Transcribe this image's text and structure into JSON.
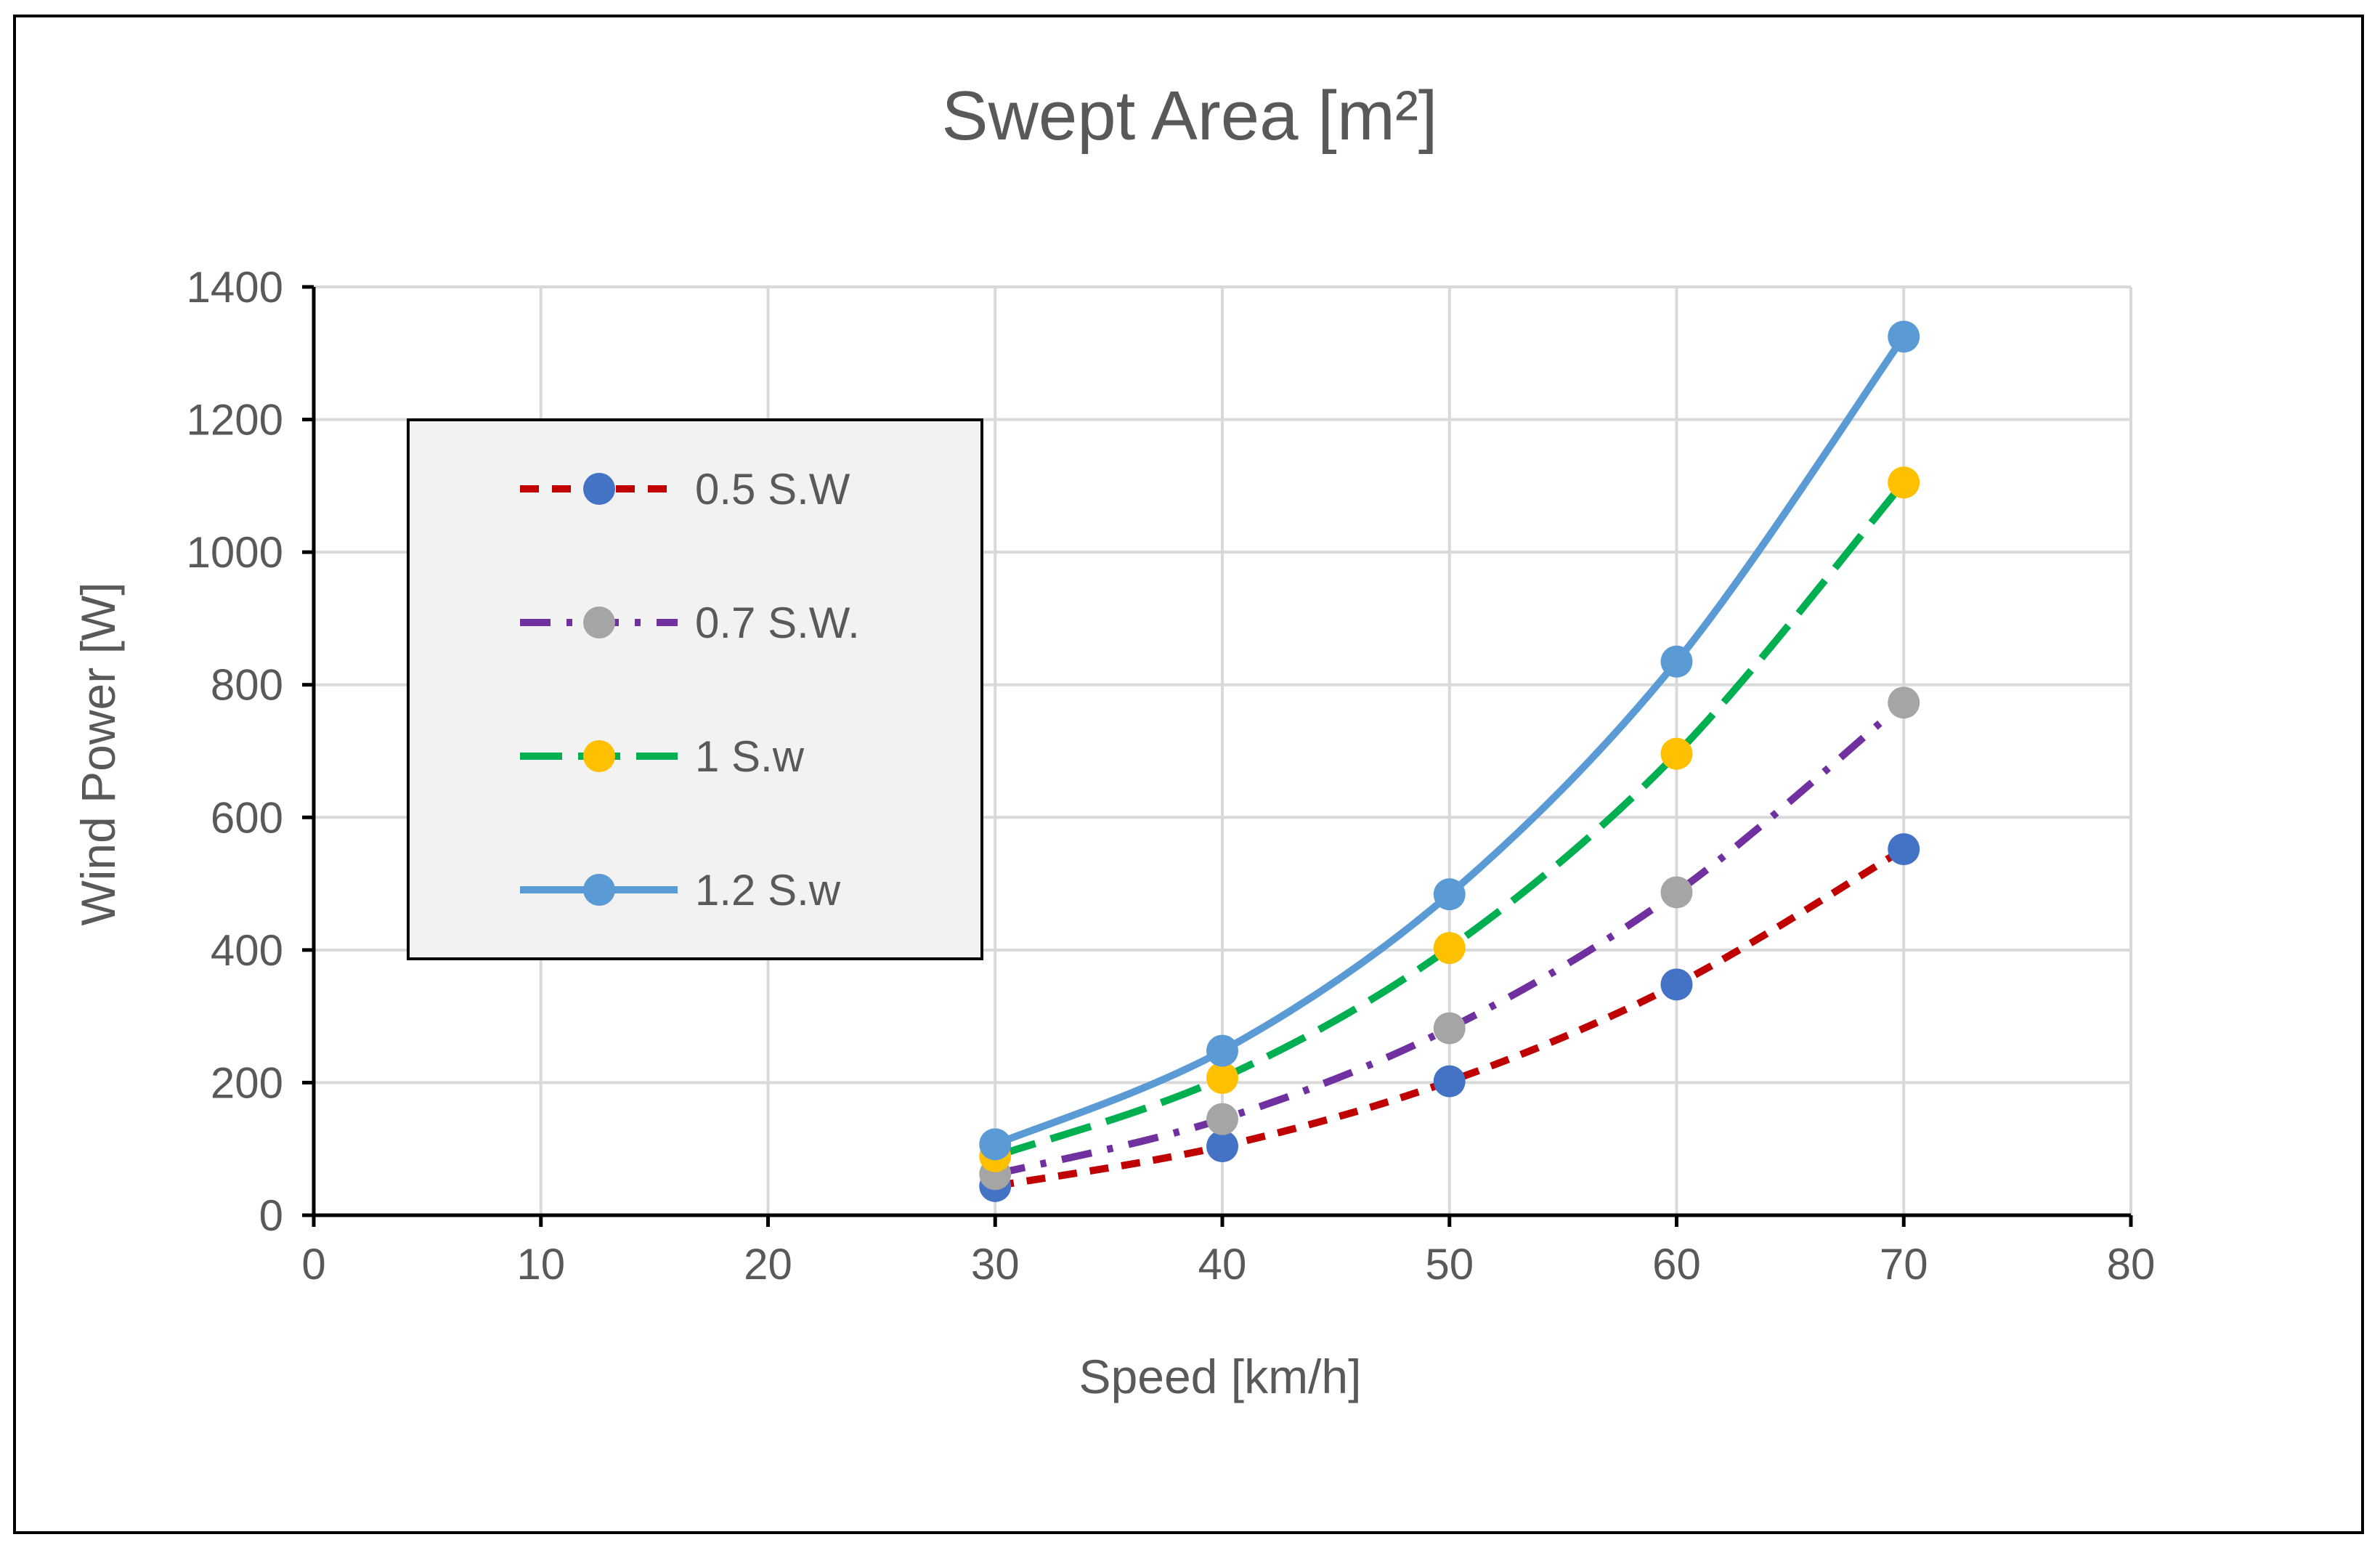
{
  "chart_data": {
    "type": "line",
    "title": "Swept Area [m²]",
    "xlabel": "Speed [km/h]",
    "ylabel": "Wind Power [W]",
    "xlim": [
      0,
      80
    ],
    "ylim": [
      0,
      1400
    ],
    "x_ticks": [
      "0",
      "10",
      "20",
      "30",
      "40",
      "50",
      "60",
      "70",
      "80"
    ],
    "y_ticks": [
      "0",
      "200",
      "400",
      "600",
      "800",
      "1000",
      "1200",
      "1400"
    ],
    "x_tick_values": [
      0,
      10,
      20,
      30,
      40,
      50,
      60,
      70,
      80
    ],
    "y_tick_values": [
      0,
      200,
      400,
      600,
      800,
      1000,
      1200,
      1400
    ],
    "grid": true,
    "legend_position": "upper-left inside plot",
    "x": [
      30,
      40,
      50,
      60,
      70
    ],
    "series": [
      {
        "name": "0.5 S.W",
        "values": [
          44,
          104,
          202,
          348,
          552
        ],
        "line_color": "#C00000",
        "marker_color": "#4472C4",
        "dash": "short-dash"
      },
      {
        "name": "0.7 S.W.",
        "values": [
          62,
          145,
          282,
          487,
          773
        ],
        "line_color": "#7030A0",
        "marker_color": "#A5A5A5",
        "dash": "dash-dot"
      },
      {
        "name": "1 S.w",
        "values": [
          89,
          207,
          403,
          696,
          1105
        ],
        "line_color": "#00B050",
        "marker_color": "#FFC000",
        "dash": "long-dash"
      },
      {
        "name": "1.2 S.w",
        "values": [
          107,
          248,
          484,
          835,
          1325
        ],
        "line_color": "#5B9BD5",
        "marker_color": "#5B9BD5",
        "dash": "solid"
      }
    ]
  }
}
